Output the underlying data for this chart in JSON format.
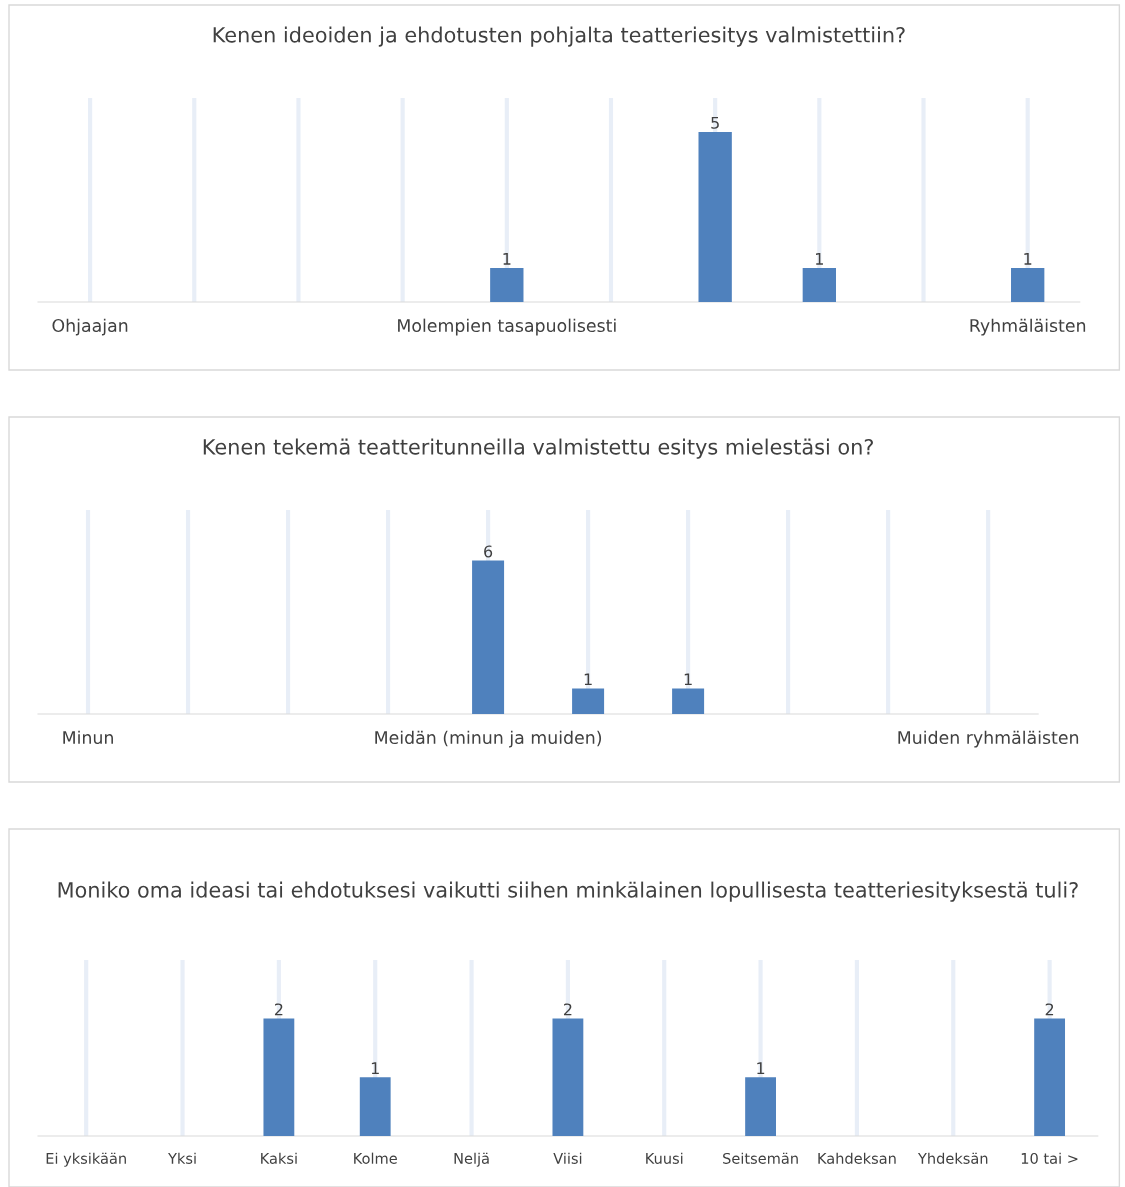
{
  "chart_data": [
    {
      "type": "bar",
      "title": "Kenen ideoiden ja ehdotusten pohjalta teatteriesitys valmistettiin?",
      "grid": "x",
      "categories": [
        "Ohjaajan",
        null,
        null,
        null,
        "Molempien tasapuolisesti",
        null,
        null,
        null,
        null,
        "Ryhmäläisten"
      ],
      "series": [
        {
          "color": "#4f81bd",
          "values": [
            null,
            null,
            null,
            null,
            1,
            null,
            5,
            1,
            null,
            1
          ],
          "value_labels": [
            null,
            null,
            null,
            null,
            "1",
            null,
            "5",
            "1",
            null,
            "1"
          ]
        }
      ]
    },
    {
      "type": "bar",
      "title": "Kenen tekemä teatteritunneilla valmistettu esitys mielestäsi on?",
      "grid": "x",
      "categories": [
        "Minun",
        null,
        null,
        null,
        "Meidän (minun ja muiden)",
        null,
        null,
        null,
        null,
        "Muiden ryhmäläisten"
      ],
      "series": [
        {
          "color": "#4f81bd",
          "values": [
            null,
            null,
            null,
            null,
            6,
            1,
            1,
            null,
            null,
            null
          ],
          "value_labels": [
            null,
            null,
            null,
            null,
            "6",
            "1",
            "1",
            null,
            null,
            null
          ]
        }
      ]
    },
    {
      "type": "bar",
      "title": "Moniko oma ideasi tai ehdotuksesi vaikutti siihen minkälainen lopullisesta teatteriesityksestä tuli?",
      "grid": "x",
      "categories": [
        "Ei yksikään",
        "Yksi",
        "Kaksi",
        "Kolme",
        "Neljä",
        "Viisi",
        "Kuusi",
        "Seitsemän",
        "Kahdeksan",
        "Yhdeksän",
        "10 tai >"
      ],
      "series": [
        {
          "color": "#4f81bd",
          "values": [
            null,
            null,
            2,
            1,
            null,
            2,
            null,
            1,
            null,
            null,
            2
          ],
          "value_labels": [
            null,
            null,
            "2",
            "1",
            null,
            "2",
            null,
            "1",
            null,
            null,
            "2"
          ]
        }
      ]
    }
  ]
}
